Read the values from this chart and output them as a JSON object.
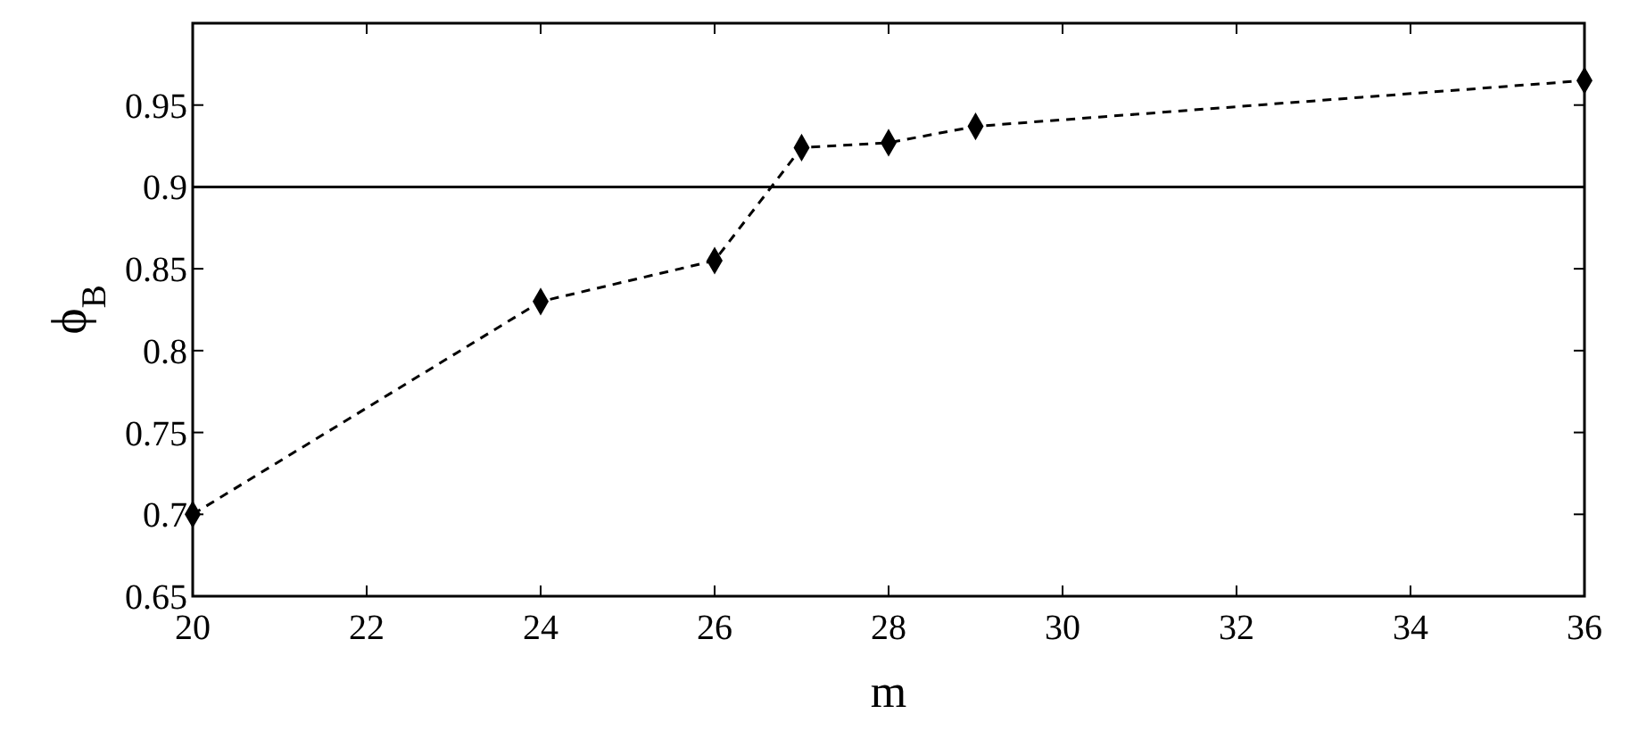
{
  "chart_data": {
    "type": "line",
    "xlabel": "m",
    "ylabel": "ϕ$_{B}$",
    "x": [
      20,
      24,
      26,
      27,
      28,
      29,
      36
    ],
    "series": [
      {
        "color": "#000000",
        "values": [
          0.7,
          0.83,
          0.855,
          0.924,
          0.927,
          0.937,
          0.965
        ]
      }
    ],
    "xlim": [
      20,
      36
    ],
    "xticks": [
      20,
      22,
      24,
      26,
      28,
      30,
      32,
      34,
      36
    ],
    "ylim": [
      0.65,
      1.0
    ],
    "yticks": [
      0.65,
      0.7,
      0.75,
      0.8,
      0.85,
      0.9,
      0.95
    ],
    "ref_lines": [
      {
        "axis": "y",
        "value": 0.9,
        "color": "#000000",
        "line_style": "solid"
      }
    ],
    "marker": "diamond",
    "line_style": "dashed",
    "grid": false
  }
}
